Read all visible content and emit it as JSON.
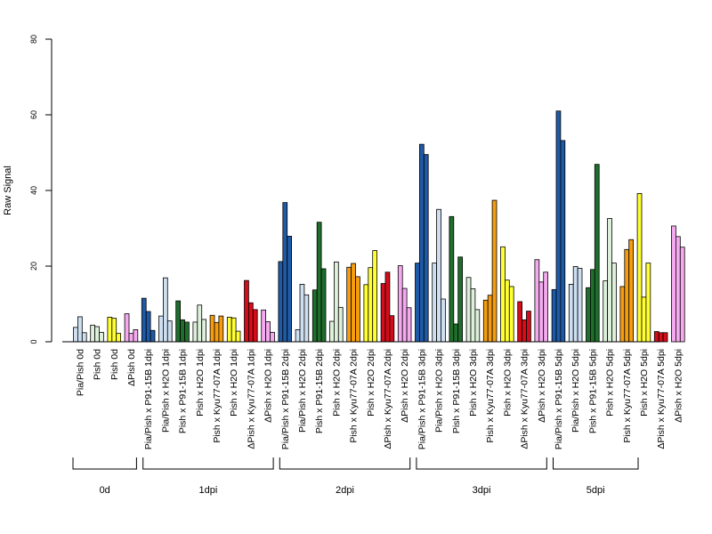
{
  "chart_data": {
    "type": "bar",
    "ylabel": "Raw Signal",
    "ylim": [
      0,
      80
    ],
    "yticks": [
      0,
      20,
      40,
      60,
      80
    ],
    "grid": false,
    "colors": {
      "Pia/Pish": "#1f5aa6",
      "Pia/Pish x H2O": "#cddff1",
      "Pish x P91-15B": "#1f6e2c",
      "Pish x H2O": "#ddf0da",
      "Pish x Kyu77-07A": "#f59d0e",
      "Pish x H2O b": "#ffff33",
      "ΔPish x Kyu77-07A": "#d50d1a",
      "ΔPish x H2O": "#f5aaf0"
    },
    "categories": [
      {
        "label": "Pia/Pish 0d",
        "color": "#cddff1",
        "values": [
          3.8,
          6.6,
          2.4
        ]
      },
      {
        "label": "Pish 0d",
        "color": "#ddf0da",
        "values": [
          4.4,
          4.0,
          2.5
        ]
      },
      {
        "label": "Pish 0d",
        "color": "#ffff33",
        "values": [
          6.5,
          6.2,
          2.2
        ]
      },
      {
        "label": "ΔPish 0d",
        "color": "#f5aaf0",
        "values": [
          7.4,
          2.2,
          3.2
        ]
      },
      {
        "label": "Pia/Pish x P91-15B 1dpi",
        "color": "#1f5aa6",
        "values": [
          11.5,
          8.0,
          3.0
        ]
      },
      {
        "label": "Pia/Pish x H2O 1dpi",
        "color": "#cddff1",
        "values": [
          6.8,
          16.9,
          5.5
        ]
      },
      {
        "label": "Pish x P91-15B 1dpi",
        "color": "#1f6e2c",
        "values": [
          10.8,
          5.8,
          5.2
        ]
      },
      {
        "label": "Pish x H2O 1dpi",
        "color": "#ddf0da",
        "values": [
          5.2,
          9.7,
          5.9
        ]
      },
      {
        "label": "Pish x Kyu77-07A 1dpi",
        "color": "#f59d0e",
        "values": [
          7.0,
          5.1,
          6.8
        ]
      },
      {
        "label": "Pish x H2O 1dpi",
        "color": "#ffff33",
        "values": [
          6.5,
          6.3,
          2.8
        ]
      },
      {
        "label": "ΔPish x Kyu77-07A 1dpi",
        "color": "#d50d1a",
        "values": [
          16.2,
          10.3,
          8.5
        ]
      },
      {
        "label": "ΔPish x H2O 1dpi",
        "color": "#f5aaf0",
        "values": [
          8.4,
          5.3,
          2.5
        ]
      },
      {
        "label": "Pia/Pish x P91-15B 2dpi",
        "color": "#1f5aa6",
        "values": [
          21.2,
          36.8,
          27.9
        ]
      },
      {
        "label": "Pia/Pish x H2O 2dpi",
        "color": "#cddff1",
        "values": [
          3.2,
          15.2,
          12.4
        ]
      },
      {
        "label": "Pish x P91-15B 2dpi",
        "color": "#1f6e2c",
        "values": [
          13.7,
          31.6,
          19.3
        ]
      },
      {
        "label": "Pish x H2O 2dpi",
        "color": "#ddf0da",
        "values": [
          5.4,
          21.1,
          9.1
        ]
      },
      {
        "label": "Pish x Kyu77-07A 2dpi",
        "color": "#f59d0e",
        "values": [
          19.7,
          20.7,
          17.2
        ]
      },
      {
        "label": "Pish x H2O 2dpi",
        "color": "#ffff33",
        "values": [
          15.1,
          19.6,
          24.1
        ]
      },
      {
        "label": "ΔPish x Kyu77-07A 2dpi",
        "color": "#d50d1a",
        "values": [
          15.4,
          18.4,
          6.9
        ]
      },
      {
        "label": "ΔPish x H2O 2dpi",
        "color": "#f5aaf0",
        "values": [
          20.1,
          14.1,
          9.0
        ]
      },
      {
        "label": "Pia/Pish x P91-15B 3dpi",
        "color": "#1f5aa6",
        "values": [
          20.8,
          52.2,
          49.5
        ]
      },
      {
        "label": "Pia/Pish x H2O 3dpi",
        "color": "#cddff1",
        "values": [
          20.8,
          35.0,
          11.3
        ]
      },
      {
        "label": "Pish x P91-15B 3dpi",
        "color": "#1f6e2c",
        "values": [
          33.1,
          4.7,
          22.4
        ]
      },
      {
        "label": "Pish x H2O 3dpi",
        "color": "#ddf0da",
        "values": [
          17.0,
          14.0,
          8.5
        ]
      },
      {
        "label": "Pish x Kyu77-07A 3dpi",
        "color": "#f59d0e",
        "values": [
          11.0,
          12.3,
          37.4
        ]
      },
      {
        "label": "Pish x H2O 3dpi",
        "color": "#ffff33",
        "values": [
          25.1,
          16.3,
          14.6
        ]
      },
      {
        "label": "ΔPish x Kyu77-07A 3dpi",
        "color": "#d50d1a",
        "values": [
          10.6,
          5.8,
          8.1
        ]
      },
      {
        "label": "ΔPish x H2O 3dpi",
        "color": "#f5aaf0",
        "values": [
          21.7,
          15.8,
          18.4
        ]
      },
      {
        "label": "Pia/Pish x P91-15B 5dpi",
        "color": "#1f5aa6",
        "values": [
          13.8,
          61.0,
          53.2
        ]
      },
      {
        "label": "Pia/Pish x H2O 5dpi",
        "color": "#cddff1",
        "values": [
          15.2,
          19.9,
          19.4
        ]
      },
      {
        "label": "Pish x P91-15B 5dpi",
        "color": "#1f6e2c",
        "values": [
          14.3,
          19.1,
          46.9
        ]
      },
      {
        "label": "Pish x H2O 5dpi",
        "color": "#ddf0da",
        "values": [
          16.1,
          32.6,
          20.8
        ]
      },
      {
        "label": "Pish x Kyu77-07A 5dpi",
        "color": "#f59d0e",
        "values": [
          14.6,
          24.4,
          27.0
        ]
      },
      {
        "label": "Pish x H2O 5dpi",
        "color": "#ffff33",
        "values": [
          39.2,
          11.8,
          20.8
        ]
      },
      {
        "label": "ΔPish x Kyu77-07A 5dpi",
        "color": "#d50d1a",
        "values": [
          2.7,
          2.4,
          2.4
        ]
      },
      {
        "label": "ΔPish x H2O 5dpi",
        "color": "#f5aaf0",
        "values": [
          30.6,
          27.8,
          25.0
        ]
      }
    ],
    "groups": [
      {
        "label": "0d",
        "count": 4
      },
      {
        "label": "1dpi",
        "count": 8
      },
      {
        "label": "2dpi",
        "count": 8
      },
      {
        "label": "3dpi",
        "count": 8
      },
      {
        "label": "5dpi",
        "count": 8
      }
    ]
  }
}
